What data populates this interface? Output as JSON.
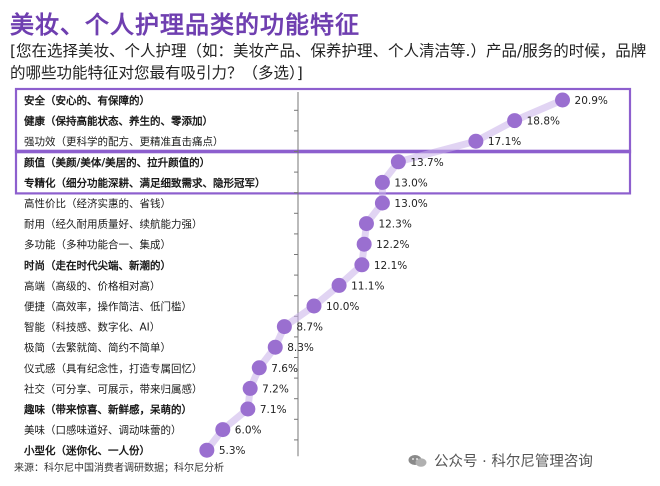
{
  "title": "美妆、个人护理品类的功能特征",
  "subtitle": "[您在选择美妆、个人护理（如：美妆产品、保养护理、个人清洁等.）产品/服务的时候，品牌的哪些功能特征对您最有吸引力？（多选）]",
  "source": "来源：科尔尼中国消费者调研数据；科尔尼分析",
  "watermark": "公众号 · 科尔尼管理咨询",
  "colors": {
    "accent": "#9a6fd0",
    "highlight_box": "#8d5fce",
    "title": "#6f3fb0"
  },
  "chart_data": {
    "type": "scatter",
    "categories": [
      "安全（安心的、有保障的）",
      "健康（保持高能状态、养生的、零添加）",
      "强功效（更科学的配方、更精准直击痛点）",
      "颜值（美颜/美体/美居的、拉升颜值的）",
      "专精化（细分功能深耕、满足细致需求、隐形冠军）",
      "高性价比（经济实惠的、省钱）",
      "耐用（经久耐用质量好、续航能力强）",
      "多功能（多种功能合一、集成）",
      "时尚（走在时代尖端、新潮的）",
      "高端（高级的、价格相对高）",
      "便捷（高效率，操作简洁、低门槛）",
      "智能（科技感、数字化、AI）",
      "极简（去繁就简、简约不简单）",
      "仪式感（具有纪念性，打造专属回忆）",
      "社交（可分享、可展示，带来归属感）",
      "趣味（带来惊喜、新鲜感，呆萌的）",
      "美味（口感味道好、调动味蕾的）",
      "小型化（迷你化、一人份）"
    ],
    "values": [
      20.9,
      18.8,
      17.1,
      13.7,
      13.0,
      13.0,
      12.3,
      12.2,
      12.1,
      11.1,
      10.0,
      8.7,
      8.3,
      7.6,
      7.2,
      7.1,
      6.0,
      5.3
    ],
    "value_labels": [
      "20.9%",
      "18.8%",
      "17.1%",
      "13.7%",
      "13.0%",
      "13.0%",
      "12.3%",
      "12.2%",
      "12.1%",
      "11.1%",
      "10.0%",
      "8.7%",
      "8.3%",
      "7.6%",
      "7.2%",
      "7.1%",
      "6.0%",
      "5.3%"
    ],
    "bold_labels": [
      0,
      1,
      3,
      4,
      8,
      15,
      17
    ],
    "highlight_groups": [
      [
        0,
        2
      ],
      [
        3,
        4
      ]
    ],
    "xlim": [
      0,
      22
    ],
    "grid": false
  }
}
